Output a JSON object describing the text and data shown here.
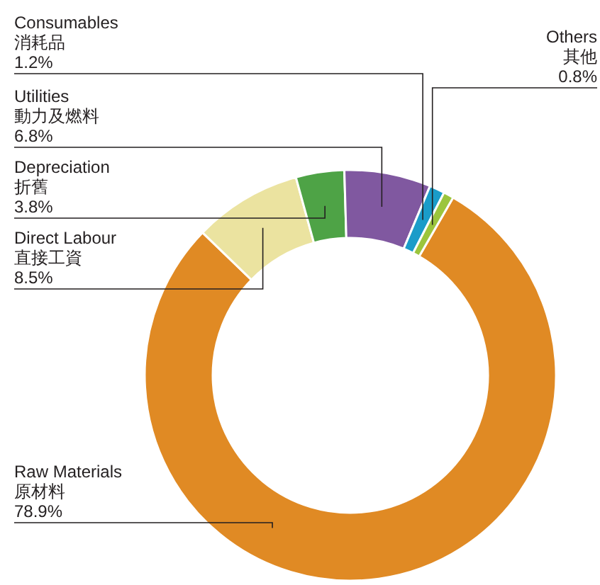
{
  "chart_data": {
    "type": "donut",
    "categories": [
      "Raw Materials\n原材料",
      "Direct Labour\n直接工資",
      "Depreciation\n折舊",
      "Utilities\n動力及燃料",
      "Consumables\n消耗品",
      "Others\n其他"
    ],
    "values": [
      78.9,
      8.5,
      3.8,
      6.8,
      1.2,
      0.8
    ],
    "value_labels": [
      "78.9%",
      "8.5%",
      "3.8%",
      "6.8%",
      "1.2%",
      "0.8%"
    ],
    "colors": [
      "#e08a24",
      "#ebe3a0",
      "#4ea346",
      "#8058a0",
      "#1a9cc9",
      "#9bc53d"
    ]
  }
}
